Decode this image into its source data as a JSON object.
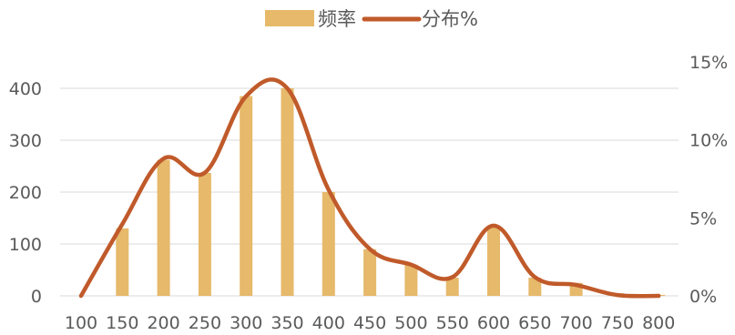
{
  "chart_data": {
    "type": "bar",
    "categories": [
      "100",
      "150",
      "200",
      "250",
      "300",
      "350",
      "400",
      "450",
      "500",
      "550",
      "600",
      "650",
      "700",
      "750",
      "800"
    ],
    "series": [
      {
        "name": "频率",
        "type": "bar",
        "axis": "left",
        "color": "#E6B96B",
        "values": [
          0,
          130,
          262,
          237,
          385,
          400,
          200,
          90,
          60,
          35,
          135,
          35,
          25,
          5,
          2
        ]
      },
      {
        "name": "分布%",
        "type": "line",
        "smooth": true,
        "axis": "right",
        "color": "#C05A2A",
        "values": [
          0,
          4.6,
          8.8,
          7.9,
          12.8,
          13.3,
          6.8,
          3.0,
          2.0,
          1.2,
          4.5,
          1.2,
          0.7,
          0.05,
          0
        ]
      }
    ],
    "y_left": {
      "ticks": [
        "0",
        "100",
        "200",
        "300",
        "400"
      ],
      "ylim": [
        0,
        450
      ]
    },
    "y_right": {
      "ticks": [
        "0%",
        "5%",
        "10%",
        "15%"
      ],
      "ylim": [
        0,
        15
      ]
    },
    "grid": true,
    "legend_position": "top-center",
    "title": "",
    "xlabel": "",
    "ylabel": ""
  }
}
